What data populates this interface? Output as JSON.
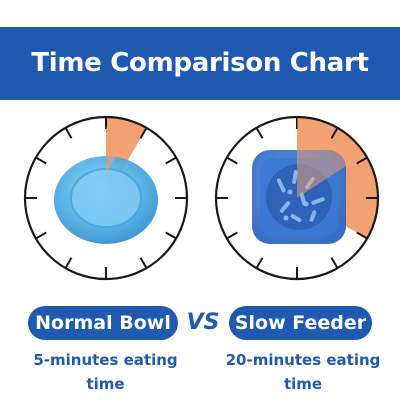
{
  "header": {
    "title": "Time Comparison Chart"
  },
  "comparison": {
    "vs_label": "VS",
    "left": {
      "label": "Normal Bowl",
      "caption": "5-minutes eating time",
      "icon": "normal-bowl-icon",
      "minutes": 5
    },
    "right": {
      "label": "Slow Feeder",
      "caption": "20-minutes eating time",
      "icon": "slow-feeder-bowl-icon",
      "minutes": 20
    }
  },
  "colors": {
    "brand_blue": "#1f5ab0",
    "highlight_orange": "#f3a173",
    "bowl_light_blue": "#52b2e8",
    "feeder_blue": "#3a78d3"
  }
}
